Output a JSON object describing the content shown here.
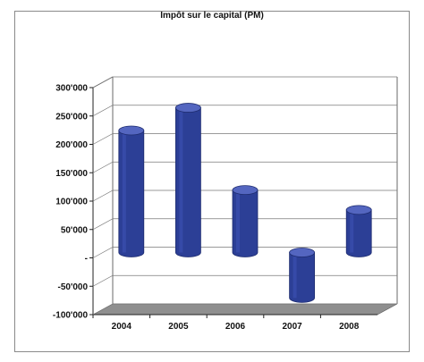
{
  "chart_data": {
    "type": "bar",
    "title": "Impôt sur le capital (PM)",
    "categories": [
      "2004",
      "2005",
      "2006",
      "2007",
      "2008"
    ],
    "values": [
      215000,
      255000,
      110000,
      -80000,
      75000
    ],
    "ylim": [
      -100000,
      300000
    ],
    "yticks": [
      300000,
      250000,
      200000,
      150000,
      100000,
      50000,
      0,
      -50000,
      -100000
    ],
    "ytick_labels": [
      "300'000",
      "250'000",
      "200'000",
      "150'000",
      "100'000",
      "50'000",
      "-",
      "-50'000",
      "-100'000"
    ],
    "grid": true,
    "legend": "none",
    "colors": {
      "bar": "#2c3f96",
      "bar_top": "#5466c0",
      "bar_dark": "#1e2c6f",
      "floor": "#8f8f8f",
      "grid": "#7a7a7a"
    }
  }
}
